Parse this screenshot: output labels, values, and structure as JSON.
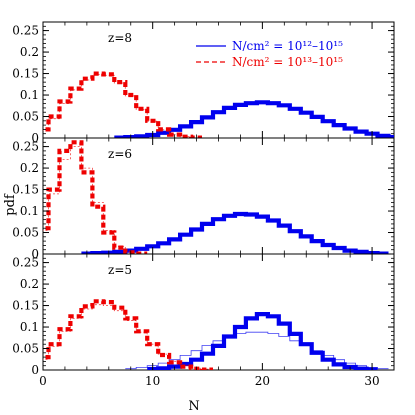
{
  "figure": {
    "xlabel": "N",
    "ylabel": "pdf"
  },
  "legend": {
    "blue_label": "N/cm² = 10¹²–10¹⁵",
    "red_label": "N/cm² = 10¹³–10¹⁵"
  },
  "colors": {
    "blue": "#0000ee",
    "red": "#ee0000",
    "axis": "#000000"
  },
  "chart_data": [
    {
      "type": "line",
      "panel_label": "z=8",
      "xlim": [
        0,
        32
      ],
      "ylim": [
        0,
        0.27
      ],
      "xticks": [
        0,
        10,
        20,
        30
      ],
      "yticks": [
        0,
        0.05,
        0.1,
        0.15,
        0.2,
        0.25
      ],
      "ytick_labels": [
        "0",
        "0.05",
        "0.1",
        "0.15",
        "0.2",
        "0.25"
      ],
      "series": [
        {
          "id": "blue_thick",
          "values": [
            [
              7,
              0.001
            ],
            [
              8,
              0.002
            ],
            [
              9,
              0.004
            ],
            [
              10,
              0.007
            ],
            [
              11,
              0.012
            ],
            [
              12,
              0.019
            ],
            [
              13,
              0.027
            ],
            [
              14,
              0.037
            ],
            [
              15,
              0.048
            ],
            [
              16,
              0.06
            ],
            [
              17,
              0.07
            ],
            [
              18,
              0.077
            ],
            [
              19,
              0.081
            ],
            [
              20,
              0.083
            ],
            [
              21,
              0.081
            ],
            [
              22,
              0.076
            ],
            [
              23,
              0.068
            ],
            [
              24,
              0.059
            ],
            [
              25,
              0.049
            ],
            [
              26,
              0.039
            ],
            [
              27,
              0.03
            ],
            [
              28,
              0.022
            ],
            [
              29,
              0.015
            ],
            [
              30,
              0.01
            ],
            [
              31,
              0.005
            ],
            [
              32,
              0.002
            ]
          ]
        },
        {
          "id": "blue_thin",
          "values": [
            [
              9,
              0.003
            ],
            [
              10,
              0.006
            ],
            [
              11,
              0.011
            ],
            [
              12,
              0.018
            ],
            [
              13,
              0.026
            ],
            [
              14,
              0.036
            ],
            [
              15,
              0.047
            ],
            [
              16,
              0.059
            ],
            [
              17,
              0.069
            ],
            [
              18,
              0.076
            ],
            [
              19,
              0.08
            ],
            [
              20,
              0.082
            ],
            [
              21,
              0.08
            ],
            [
              22,
              0.075
            ],
            [
              23,
              0.067
            ],
            [
              24,
              0.058
            ],
            [
              25,
              0.048
            ],
            [
              26,
              0.038
            ],
            [
              27,
              0.029
            ],
            [
              28,
              0.021
            ],
            [
              29,
              0.014
            ],
            [
              30,
              0.009
            ],
            [
              31,
              0.005
            ],
            [
              32,
              0.002
            ]
          ]
        },
        {
          "id": "red_thick",
          "values": [
            [
              0,
              0.02
            ],
            [
              1,
              0.05
            ],
            [
              2,
              0.085
            ],
            [
              3,
              0.115
            ],
            [
              4,
              0.138
            ],
            [
              5,
              0.15
            ],
            [
              6,
              0.148
            ],
            [
              7,
              0.13
            ],
            [
              8,
              0.1
            ],
            [
              9,
              0.068
            ],
            [
              10,
              0.04
            ],
            [
              11,
              0.02
            ],
            [
              12,
              0.008
            ],
            [
              13,
              0.003
            ],
            [
              14,
              0.001
            ]
          ]
        },
        {
          "id": "red_thin",
          "values": [
            [
              0,
              0.018
            ],
            [
              1,
              0.045
            ],
            [
              2,
              0.08
            ],
            [
              3,
              0.112
            ],
            [
              4,
              0.135
            ],
            [
              5,
              0.148
            ],
            [
              6,
              0.146
            ],
            [
              7,
              0.128
            ],
            [
              8,
              0.098
            ],
            [
              9,
              0.066
            ],
            [
              10,
              0.039
            ],
            [
              11,
              0.019
            ],
            [
              12,
              0.008
            ],
            [
              13,
              0.003
            ]
          ]
        }
      ]
    },
    {
      "type": "line",
      "panel_label": "z=6",
      "xlim": [
        0,
        32
      ],
      "ylim": [
        0,
        0.27
      ],
      "xticks": [
        0,
        10,
        20,
        30
      ],
      "yticks": [
        0,
        0.05,
        0.1,
        0.15,
        0.2,
        0.25
      ],
      "ytick_labels": [
        "0",
        "0.05",
        "0.1",
        "0.15",
        "0.2",
        "0.25"
      ],
      "series": [
        {
          "id": "blue_thick",
          "values": [
            [
              4,
              0.001
            ],
            [
              5,
              0.002
            ],
            [
              6,
              0.003
            ],
            [
              7,
              0.005
            ],
            [
              8,
              0.008
            ],
            [
              9,
              0.012
            ],
            [
              10,
              0.018
            ],
            [
              11,
              0.025
            ],
            [
              12,
              0.034
            ],
            [
              13,
              0.045
            ],
            [
              14,
              0.057
            ],
            [
              15,
              0.07
            ],
            [
              16,
              0.081
            ],
            [
              17,
              0.089
            ],
            [
              18,
              0.093
            ],
            [
              19,
              0.092
            ],
            [
              20,
              0.087
            ],
            [
              21,
              0.078
            ],
            [
              22,
              0.066
            ],
            [
              23,
              0.053
            ],
            [
              24,
              0.041
            ],
            [
              25,
              0.03
            ],
            [
              26,
              0.021
            ],
            [
              27,
              0.014
            ],
            [
              28,
              0.008
            ],
            [
              29,
              0.005
            ],
            [
              30,
              0.002
            ],
            [
              31,
              0.001
            ]
          ]
        },
        {
          "id": "blue_thin",
          "values": [
            [
              6,
              0.002
            ],
            [
              7,
              0.004
            ],
            [
              8,
              0.007
            ],
            [
              9,
              0.011
            ],
            [
              10,
              0.017
            ],
            [
              11,
              0.024
            ],
            [
              12,
              0.033
            ],
            [
              13,
              0.044
            ],
            [
              14,
              0.056
            ],
            [
              15,
              0.069
            ],
            [
              16,
              0.08
            ],
            [
              17,
              0.088
            ],
            [
              18,
              0.092
            ],
            [
              19,
              0.091
            ],
            [
              20,
              0.086
            ],
            [
              21,
              0.077
            ],
            [
              22,
              0.065
            ],
            [
              23,
              0.052
            ],
            [
              24,
              0.04
            ],
            [
              25,
              0.029
            ],
            [
              26,
              0.02
            ],
            [
              27,
              0.013
            ],
            [
              28,
              0.008
            ],
            [
              29,
              0.004
            ],
            [
              30,
              0.002
            ]
          ]
        },
        {
          "id": "red_thick",
          "values": [
            [
              0,
              0.06
            ],
            [
              1,
              0.15
            ],
            [
              2,
              0.24
            ],
            [
              3,
              0.26
            ],
            [
              4,
              0.19
            ],
            [
              5,
              0.11
            ],
            [
              6,
              0.05
            ],
            [
              7,
              0.015
            ],
            [
              8,
              0.004
            ],
            [
              9,
              0.001
            ]
          ]
        },
        {
          "id": "red_thin",
          "values": [
            [
              0,
              0.055
            ],
            [
              1,
              0.14
            ],
            [
              2,
              0.22
            ],
            [
              3,
              0.25
            ],
            [
              4,
              0.2
            ],
            [
              5,
              0.12
            ],
            [
              6,
              0.055
            ],
            [
              7,
              0.018
            ],
            [
              8,
              0.005
            ]
          ]
        }
      ]
    },
    {
      "type": "line",
      "panel_label": "z=5",
      "xlim": [
        0,
        32
      ],
      "ylim": [
        0,
        0.27
      ],
      "xticks": [
        0,
        10,
        20,
        30
      ],
      "yticks": [
        0,
        0.05,
        0.1,
        0.15,
        0.2,
        0.25
      ],
      "xtick_labels": [
        "0",
        "10",
        "20",
        "30"
      ],
      "ytick_labels": [
        "0",
        "0.05",
        "0.1",
        "0.15",
        "0.2",
        "0.25"
      ],
      "series": [
        {
          "id": "blue_thick",
          "values": [
            [
              10,
              0.002
            ],
            [
              11,
              0.004
            ],
            [
              12,
              0.008
            ],
            [
              13,
              0.014
            ],
            [
              14,
              0.024
            ],
            [
              15,
              0.038
            ],
            [
              16,
              0.056
            ],
            [
              17,
              0.078
            ],
            [
              18,
              0.1
            ],
            [
              19,
              0.12
            ],
            [
              20,
              0.13
            ],
            [
              21,
              0.125
            ],
            [
              22,
              0.108
            ],
            [
              23,
              0.084
            ],
            [
              24,
              0.06
            ],
            [
              25,
              0.04
            ],
            [
              26,
              0.024
            ],
            [
              27,
              0.013
            ],
            [
              28,
              0.007
            ],
            [
              29,
              0.003
            ],
            [
              30,
              0.001
            ]
          ]
        },
        {
          "id": "blue_thin",
          "values": [
            [
              8,
              0.003
            ],
            [
              9,
              0.006
            ],
            [
              10,
              0.01
            ],
            [
              11,
              0.016
            ],
            [
              12,
              0.024
            ],
            [
              13,
              0.034
            ],
            [
              14,
              0.045
            ],
            [
              15,
              0.057
            ],
            [
              16,
              0.068
            ],
            [
              17,
              0.078
            ],
            [
              18,
              0.085
            ],
            [
              19,
              0.088
            ],
            [
              20,
              0.088
            ],
            [
              21,
              0.085
            ],
            [
              22,
              0.078
            ],
            [
              23,
              0.068
            ],
            [
              24,
              0.057
            ],
            [
              25,
              0.045
            ],
            [
              26,
              0.034
            ],
            [
              27,
              0.024
            ],
            [
              28,
              0.016
            ],
            [
              29,
              0.01
            ],
            [
              30,
              0.006
            ],
            [
              31,
              0.003
            ]
          ]
        },
        {
          "id": "red_thick",
          "values": [
            [
              0,
              0.03
            ],
            [
              1,
              0.06
            ],
            [
              2,
              0.095
            ],
            [
              3,
              0.125
            ],
            [
              4,
              0.148
            ],
            [
              5,
              0.16
            ],
            [
              6,
              0.158
            ],
            [
              7,
              0.145
            ],
            [
              8,
              0.12
            ],
            [
              9,
              0.09
            ],
            [
              10,
              0.06
            ],
            [
              11,
              0.035
            ],
            [
              12,
              0.018
            ],
            [
              13,
              0.008
            ],
            [
              14,
              0.003
            ],
            [
              15,
              0.001
            ]
          ]
        },
        {
          "id": "red_thin",
          "values": [
            [
              0,
              0.025
            ],
            [
              1,
              0.055
            ],
            [
              2,
              0.09
            ],
            [
              3,
              0.12
            ],
            [
              4,
              0.142
            ],
            [
              5,
              0.152
            ],
            [
              6,
              0.15
            ],
            [
              7,
              0.138
            ],
            [
              8,
              0.115
            ],
            [
              9,
              0.088
            ],
            [
              10,
              0.06
            ],
            [
              11,
              0.037
            ],
            [
              12,
              0.02
            ],
            [
              13,
              0.01
            ],
            [
              14,
              0.004
            ],
            [
              15,
              0.002
            ]
          ]
        }
      ]
    }
  ]
}
